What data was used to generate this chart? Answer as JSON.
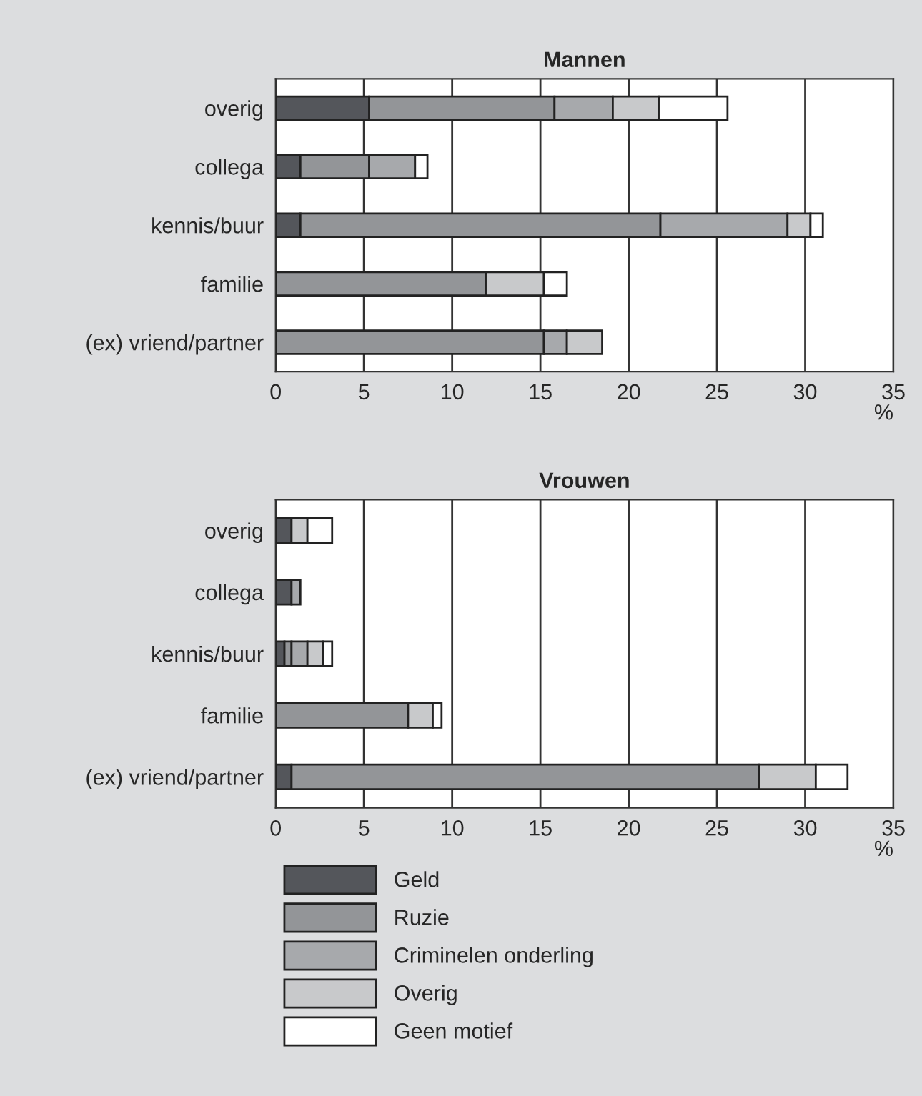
{
  "chart_data": [
    {
      "type": "bar",
      "orientation": "horizontal",
      "stacked": true,
      "title": "Mannen",
      "xlabel": "%",
      "categories": [
        "overig",
        "collega",
        "kennis/buur",
        "familie",
        "(ex) vriend/partner"
      ],
      "xlim": [
        0,
        35
      ],
      "xticks": [
        0,
        5,
        10,
        15,
        20,
        25,
        30,
        35
      ],
      "grid": "x",
      "legend": false,
      "series": [
        {
          "color": "#54565b",
          "values": [
            5.3,
            1.4,
            1.4,
            null,
            null
          ]
        },
        {
          "color": "#939598",
          "values": [
            10.5,
            3.9,
            20.4,
            11.9,
            15.2
          ]
        },
        {
          "color": "#a7a9ac",
          "values": [
            3.3,
            2.6,
            7.2,
            null,
            1.3
          ]
        },
        {
          "color": "#c8c9cb",
          "values": [
            2.6,
            null,
            1.3,
            3.3,
            2.0
          ]
        },
        {
          "color": "#ffffff",
          "values": [
            3.9,
            0.7,
            0.7,
            1.3,
            null
          ]
        }
      ]
    },
    {
      "type": "bar",
      "orientation": "horizontal",
      "stacked": true,
      "title": "Vrouwen",
      "xlabel": "%",
      "categories": [
        "overig",
        "collega",
        "kennis/buur",
        "familie",
        "(ex) vriend/partner"
      ],
      "xlim": [
        0,
        35
      ],
      "xticks": [
        0,
        5,
        10,
        15,
        20,
        25,
        30,
        35
      ],
      "grid": "x",
      "legend": "bottom",
      "series": [
        {
          "name": "Geld",
          "color": "#54565b",
          "values": [
            0.9,
            0.9,
            0.5,
            null,
            0.9
          ]
        },
        {
          "name": "Ruzie",
          "color": "#939598",
          "values": [
            null,
            null,
            0.4,
            7.5,
            26.5
          ]
        },
        {
          "name": "Criminelen onderling",
          "color": "#a7a9ac",
          "values": [
            null,
            0.5,
            0.9,
            null,
            null
          ]
        },
        {
          "name": "Overig",
          "color": "#c8c9cb",
          "values": [
            0.9,
            null,
            0.9,
            1.4,
            3.2
          ]
        },
        {
          "name": "Geen motief",
          "color": "#ffffff",
          "values": [
            1.4,
            null,
            0.5,
            0.5,
            1.8
          ]
        }
      ]
    }
  ]
}
